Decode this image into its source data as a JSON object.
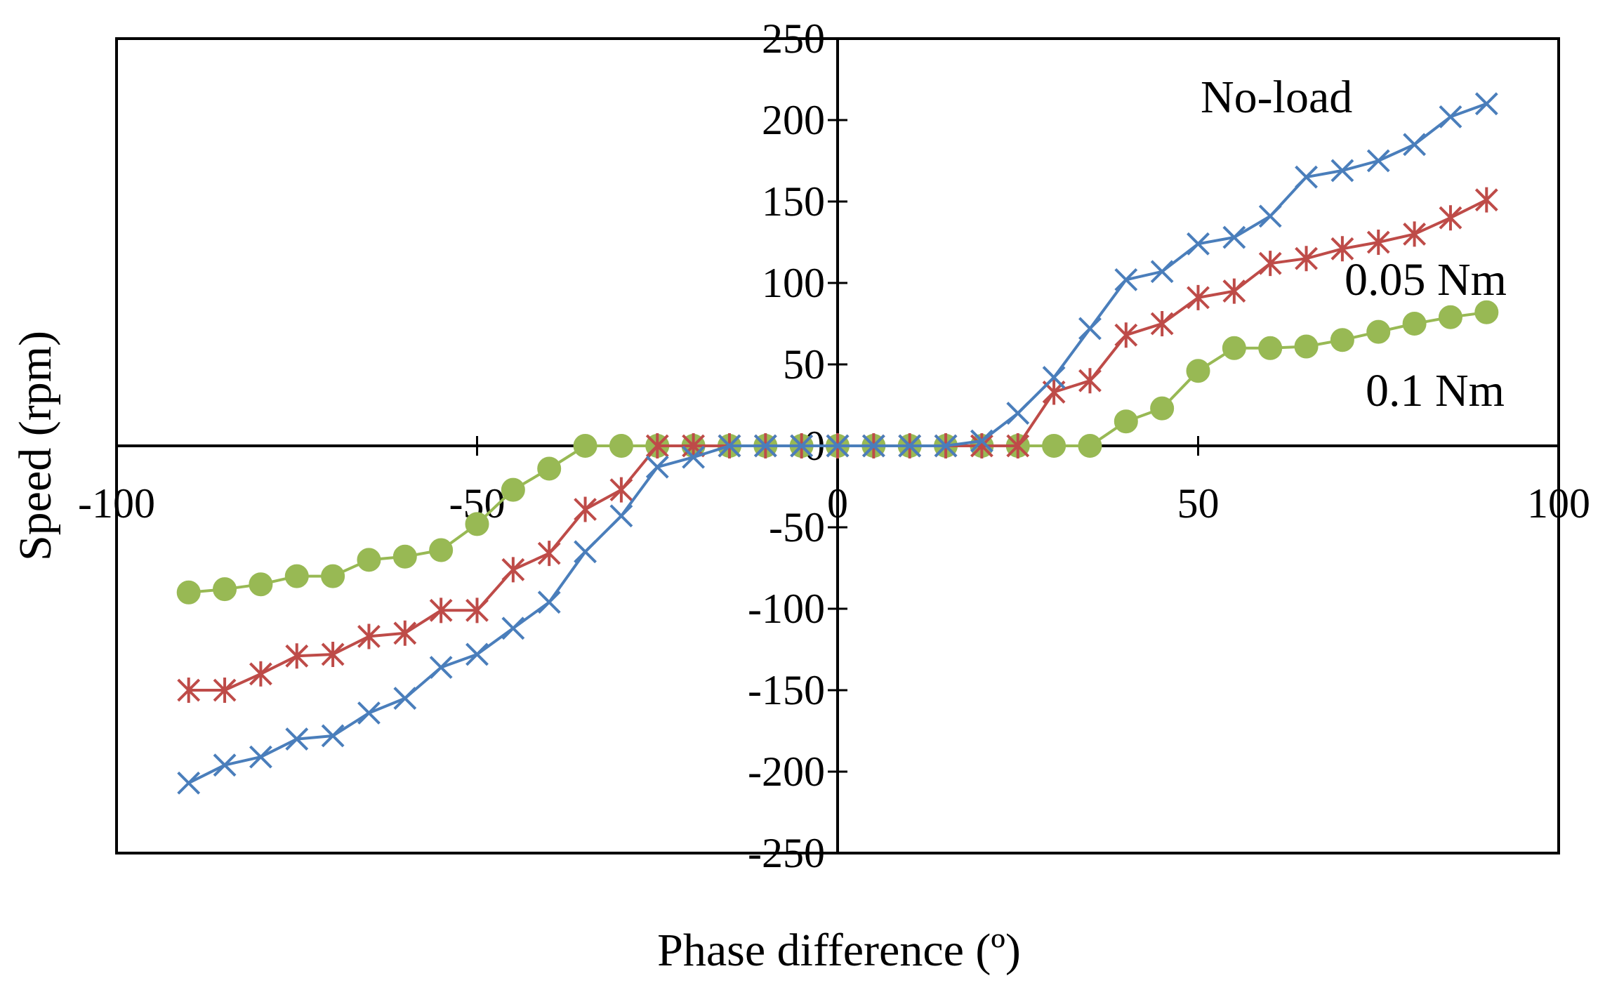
{
  "chart_data": {
    "type": "line",
    "title": "",
    "xlabel": "Phase difference (º)",
    "ylabel": "Speed (rpm)",
    "xlim": [
      -100,
      100
    ],
    "ylim": [
      -250,
      250
    ],
    "x_ticks": [
      "-100",
      "-50",
      "0",
      "50",
      "100"
    ],
    "y_ticks": [
      "-250",
      "-200",
      "-150",
      "-100",
      "-50",
      "0",
      "50",
      "100",
      "150",
      "200",
      "250"
    ],
    "x_tick_values": [
      -100,
      -50,
      0,
      50,
      100
    ],
    "y_tick_values": [
      -250,
      -200,
      -150,
      -100,
      -50,
      0,
      50,
      100,
      150,
      200,
      250
    ],
    "grid": false,
    "legend": "inline labels",
    "x": [
      -90,
      -85,
      -80,
      -75,
      -70,
      -65,
      -60,
      -55,
      -50,
      -45,
      -40,
      -35,
      -30,
      -25,
      -20,
      -15,
      -10,
      -5,
      0,
      5,
      10,
      15,
      20,
      25,
      30,
      35,
      40,
      45,
      50,
      55,
      60,
      65,
      70,
      75,
      80,
      85,
      90
    ],
    "series": [
      {
        "name": "No-load",
        "color": "#4a7ebb",
        "marker": "x",
        "values": [
          -207,
          -196,
          -191,
          -180,
          -178,
          -164,
          -155,
          -136,
          -128,
          -112,
          -96,
          -65,
          -43,
          -13,
          -7,
          0,
          0,
          0,
          0,
          0,
          0,
          0,
          3,
          20,
          42,
          72,
          102,
          107,
          124,
          128,
          141,
          165,
          169,
          175,
          185,
          202,
          210
        ]
      },
      {
        "name": "0.05 Nm",
        "color": "#be4b48",
        "marker": "asterisk",
        "values": [
          -150,
          -150,
          -140,
          -129,
          -128,
          -117,
          -115,
          -101,
          -101,
          -76,
          -66,
          -39,
          -27,
          0,
          0,
          0,
          0,
          0,
          0,
          0,
          0,
          0,
          0,
          0,
          33,
          40,
          68,
          75,
          91,
          95,
          112,
          115,
          121,
          125,
          130,
          140,
          151
        ]
      },
      {
        "name": "0.1 Nm",
        "color": "#98b954",
        "marker": "circle",
        "values": [
          -90,
          -88,
          -85,
          -80,
          -80,
          -70,
          -68,
          -64,
          -48,
          -27,
          -14,
          0,
          0,
          0,
          0,
          0,
          0,
          0,
          0,
          0,
          0,
          0,
          0,
          0,
          0,
          0,
          15,
          23,
          46,
          60,
          60,
          61,
          65,
          70,
          75,
          79,
          82
        ]
      }
    ],
    "annotations": [
      "No-load",
      "0.05 Nm",
      "0.1 Nm"
    ]
  }
}
